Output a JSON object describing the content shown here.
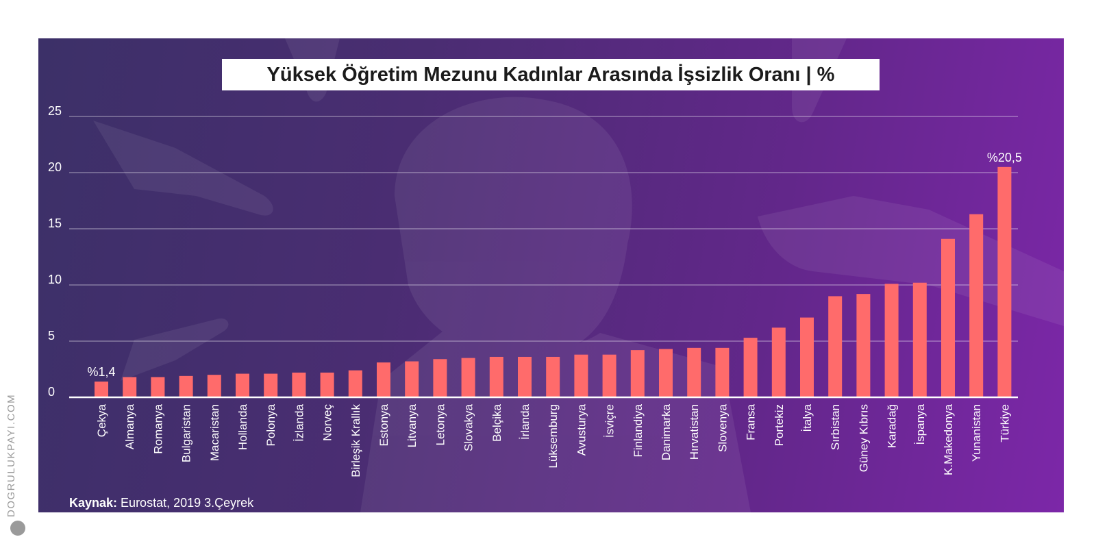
{
  "chart_data": {
    "type": "bar",
    "title": "Yüksek Öğretim Mezunu Kadınlar Arasında İşsizlik Oranı | %",
    "categories": [
      "Çekya",
      "Almanya",
      "Romanya",
      "Bulgaristan",
      "Macaristan",
      "Hollanda",
      "Polonya",
      "İzlanda",
      "Norveç",
      "Birleşik Krallık",
      "Estonya",
      "Litvanya",
      "Letonya",
      "Slovakya",
      "Belçika",
      "İrlanda",
      "Lüksemburg",
      "Avusturya",
      "İsviçre",
      "Finlandiya",
      "Danimarka",
      "Hırvatistan",
      "Slovenya",
      "Fransa",
      "Portekiz",
      "İtalya",
      "Sırbistan",
      "Güney Kıbrıs",
      "Karadağ",
      "İspanya",
      "K.Makedonya",
      "Yunanistan",
      "Türkiye"
    ],
    "values": [
      1.4,
      1.8,
      1.8,
      1.9,
      2.0,
      2.1,
      2.1,
      2.2,
      2.2,
      2.4,
      3.1,
      3.2,
      3.4,
      3.5,
      3.6,
      3.6,
      3.6,
      3.8,
      3.8,
      4.2,
      4.3,
      4.4,
      4.4,
      5.3,
      6.2,
      7.1,
      9.0,
      9.2,
      10.1,
      10.2,
      14.1,
      16.3,
      20.5
    ],
    "data_labels": [
      {
        "category": "Çekya",
        "text": "%1,4"
      },
      {
        "category": "Türkiye",
        "text": "%20,5"
      }
    ],
    "ylim": [
      0,
      25
    ],
    "yticks": [
      "0",
      "5",
      "10",
      "15",
      "20",
      "25"
    ],
    "grid": true,
    "bar_color": "#ff6b6b",
    "xlabel": "",
    "ylabel": ""
  },
  "source": {
    "label": "Kaynak:",
    "text": "Eurostat, 2019 3.Çeyrek"
  },
  "watermark": "DOGRULUKPAYI.COM"
}
